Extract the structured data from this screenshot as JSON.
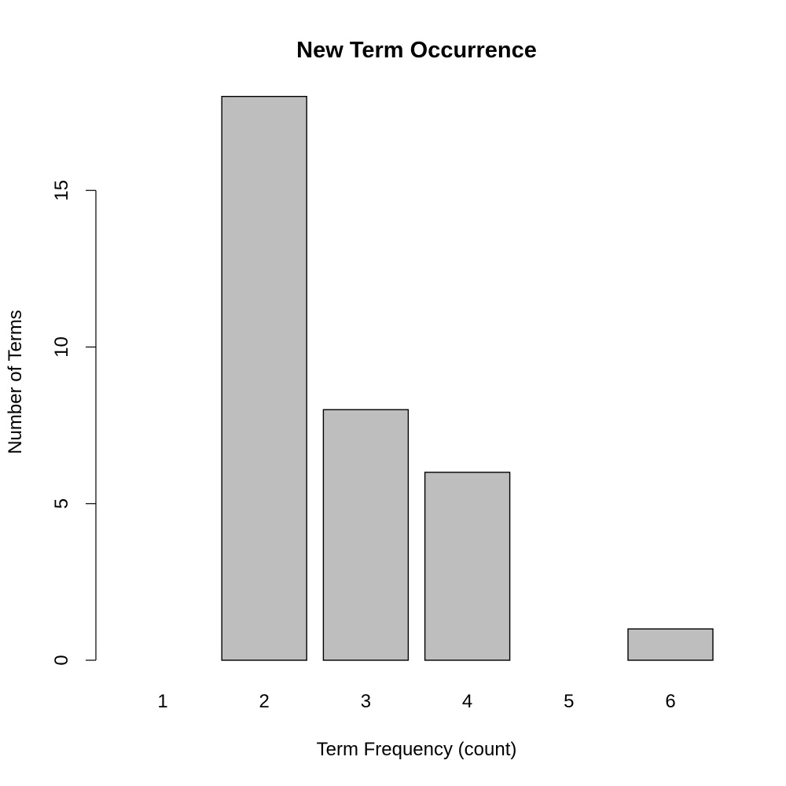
{
  "chart_data": {
    "type": "bar",
    "title": "New Term Occurrence",
    "xlabel": "Term Frequency (count)",
    "ylabel": "Number of Terms",
    "categories": [
      "1",
      "2",
      "3",
      "4",
      "5",
      "6"
    ],
    "values": [
      0,
      18,
      8,
      6,
      0,
      1
    ],
    "ylim": [
      0,
      18
    ],
    "yticks": [
      0,
      5,
      10,
      15
    ],
    "ytick_labels": [
      "0",
      "5",
      "10",
      "15"
    ],
    "grid": false,
    "bar_fill": "#bebebe",
    "bar_stroke": "#000000"
  }
}
